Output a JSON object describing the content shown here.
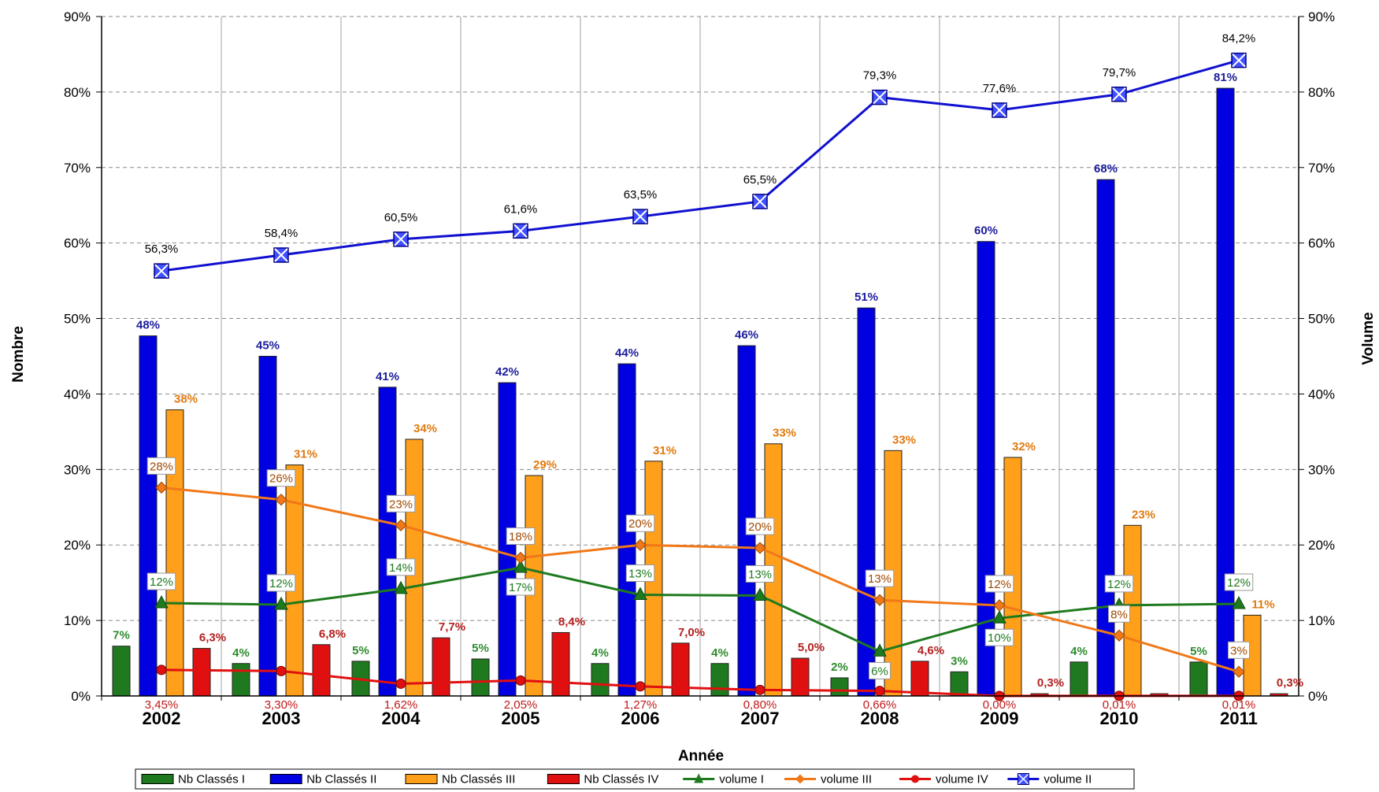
{
  "chart_data": {
    "type": "bar",
    "xlabel": "Année",
    "ylabel": "Nombre",
    "ylabel_right": "Volume",
    "ylim": [
      0,
      90
    ],
    "ylim_right": [
      0,
      90
    ],
    "y_ticks": [
      "0%",
      "10%",
      "20%",
      "30%",
      "40%",
      "50%",
      "60%",
      "70%",
      "80%",
      "90%"
    ],
    "grid": true,
    "legend_position": "bottom",
    "categories": [
      "2002",
      "2003",
      "2004",
      "2005",
      "2006",
      "2007",
      "2008",
      "2009",
      "2010",
      "2011"
    ],
    "bar_series": [
      {
        "name": "Nb Classés I",
        "color": "#1f7a1f",
        "label_color": "#2e8b2e",
        "values": [
          6.6,
          4.3,
          4.6,
          4.9,
          4.3,
          4.3,
          2.4,
          3.2,
          4.5,
          4.5
        ],
        "labels": [
          "7%",
          "4%",
          "5%",
          "5%",
          "4%",
          "4%",
          "2%",
          "3%",
          "4%",
          "5%"
        ]
      },
      {
        "name": "Nb Classés II",
        "color": "#0000e0",
        "label_color": "#1c1c9c",
        "values": [
          47.7,
          45.0,
          40.9,
          41.5,
          44.0,
          46.4,
          51.4,
          60.2,
          68.4,
          80.5
        ],
        "labels": [
          "48%",
          "45%",
          "41%",
          "42%",
          "44%",
          "46%",
          "51%",
          "60%",
          "68%",
          "81%"
        ]
      },
      {
        "name": "Nb Classés III",
        "color": "#ff9f1a",
        "label_color": "#e07a10",
        "values": [
          37.9,
          30.6,
          34.0,
          29.2,
          31.1,
          33.4,
          32.5,
          31.6,
          22.6,
          10.7
        ],
        "labels": [
          "38%",
          "31%",
          "34%",
          "29%",
          "31%",
          "33%",
          "33%",
          "32%",
          "23%",
          "11%"
        ]
      },
      {
        "name": "Nb Classés IV",
        "color": "#e01010",
        "label_color": "#b52020",
        "values": [
          6.3,
          6.8,
          7.7,
          8.4,
          7.0,
          5.0,
          4.6,
          0.3,
          0.3,
          0.3
        ],
        "labels": [
          "6,3%",
          "6,8%",
          "7,7%",
          "8,4%",
          "7,0%",
          "5,0%",
          "4,6%",
          "0,3%",
          "",
          "0,3%"
        ]
      }
    ],
    "line_series": [
      {
        "name": "volume I",
        "color": "#1f7a1f",
        "marker": "triangle",
        "values": [
          12.3,
          12.1,
          14.2,
          17.0,
          13.4,
          13.3,
          5.9,
          10.3,
          12.0,
          12.2
        ],
        "labels": [
          "12%",
          "12%",
          "14%",
          "17%",
          "13%",
          "13%",
          "6%",
          "10%",
          "12%",
          "12%"
        ]
      },
      {
        "name": "volume III",
        "color": "#f07818",
        "marker": "diamond",
        "values": [
          27.6,
          26.0,
          22.6,
          18.3,
          20.0,
          19.6,
          12.7,
          12.0,
          8.0,
          3.2
        ],
        "labels": [
          "28%",
          "26%",
          "23%",
          "18%",
          "20%",
          "20%",
          "13%",
          "12%",
          "8%",
          "3%"
        ]
      },
      {
        "name": "volume IV",
        "color": "#e01010",
        "marker": "circle",
        "values": [
          3.45,
          3.3,
          1.62,
          2.05,
          1.27,
          0.8,
          0.66,
          0.0,
          0.01,
          0.01
        ],
        "labels": [
          "3,45%",
          "3,30%",
          "1,62%",
          "2,05%",
          "1,27%",
          "0,80%",
          "0,66%",
          "0,00%",
          "0,01%",
          "0,01%"
        ]
      },
      {
        "name": "volume II",
        "color": "#1010d0",
        "marker": "xbox",
        "values": [
          56.3,
          58.4,
          60.5,
          61.6,
          63.5,
          65.5,
          79.3,
          77.6,
          79.7,
          84.2
        ],
        "labels": [
          "56,3%",
          "58,4%",
          "60,5%",
          "61,6%",
          "63,5%",
          "65,5%",
          "79,3%",
          "77,6%",
          "79,7%",
          "84,2%"
        ]
      }
    ],
    "legend_order": [
      "Nb Classés I",
      "Nb Classés II",
      "Nb Classés III",
      "Nb Classés IV",
      "volume I",
      "volume III",
      "volume IV",
      "volume II"
    ]
  }
}
